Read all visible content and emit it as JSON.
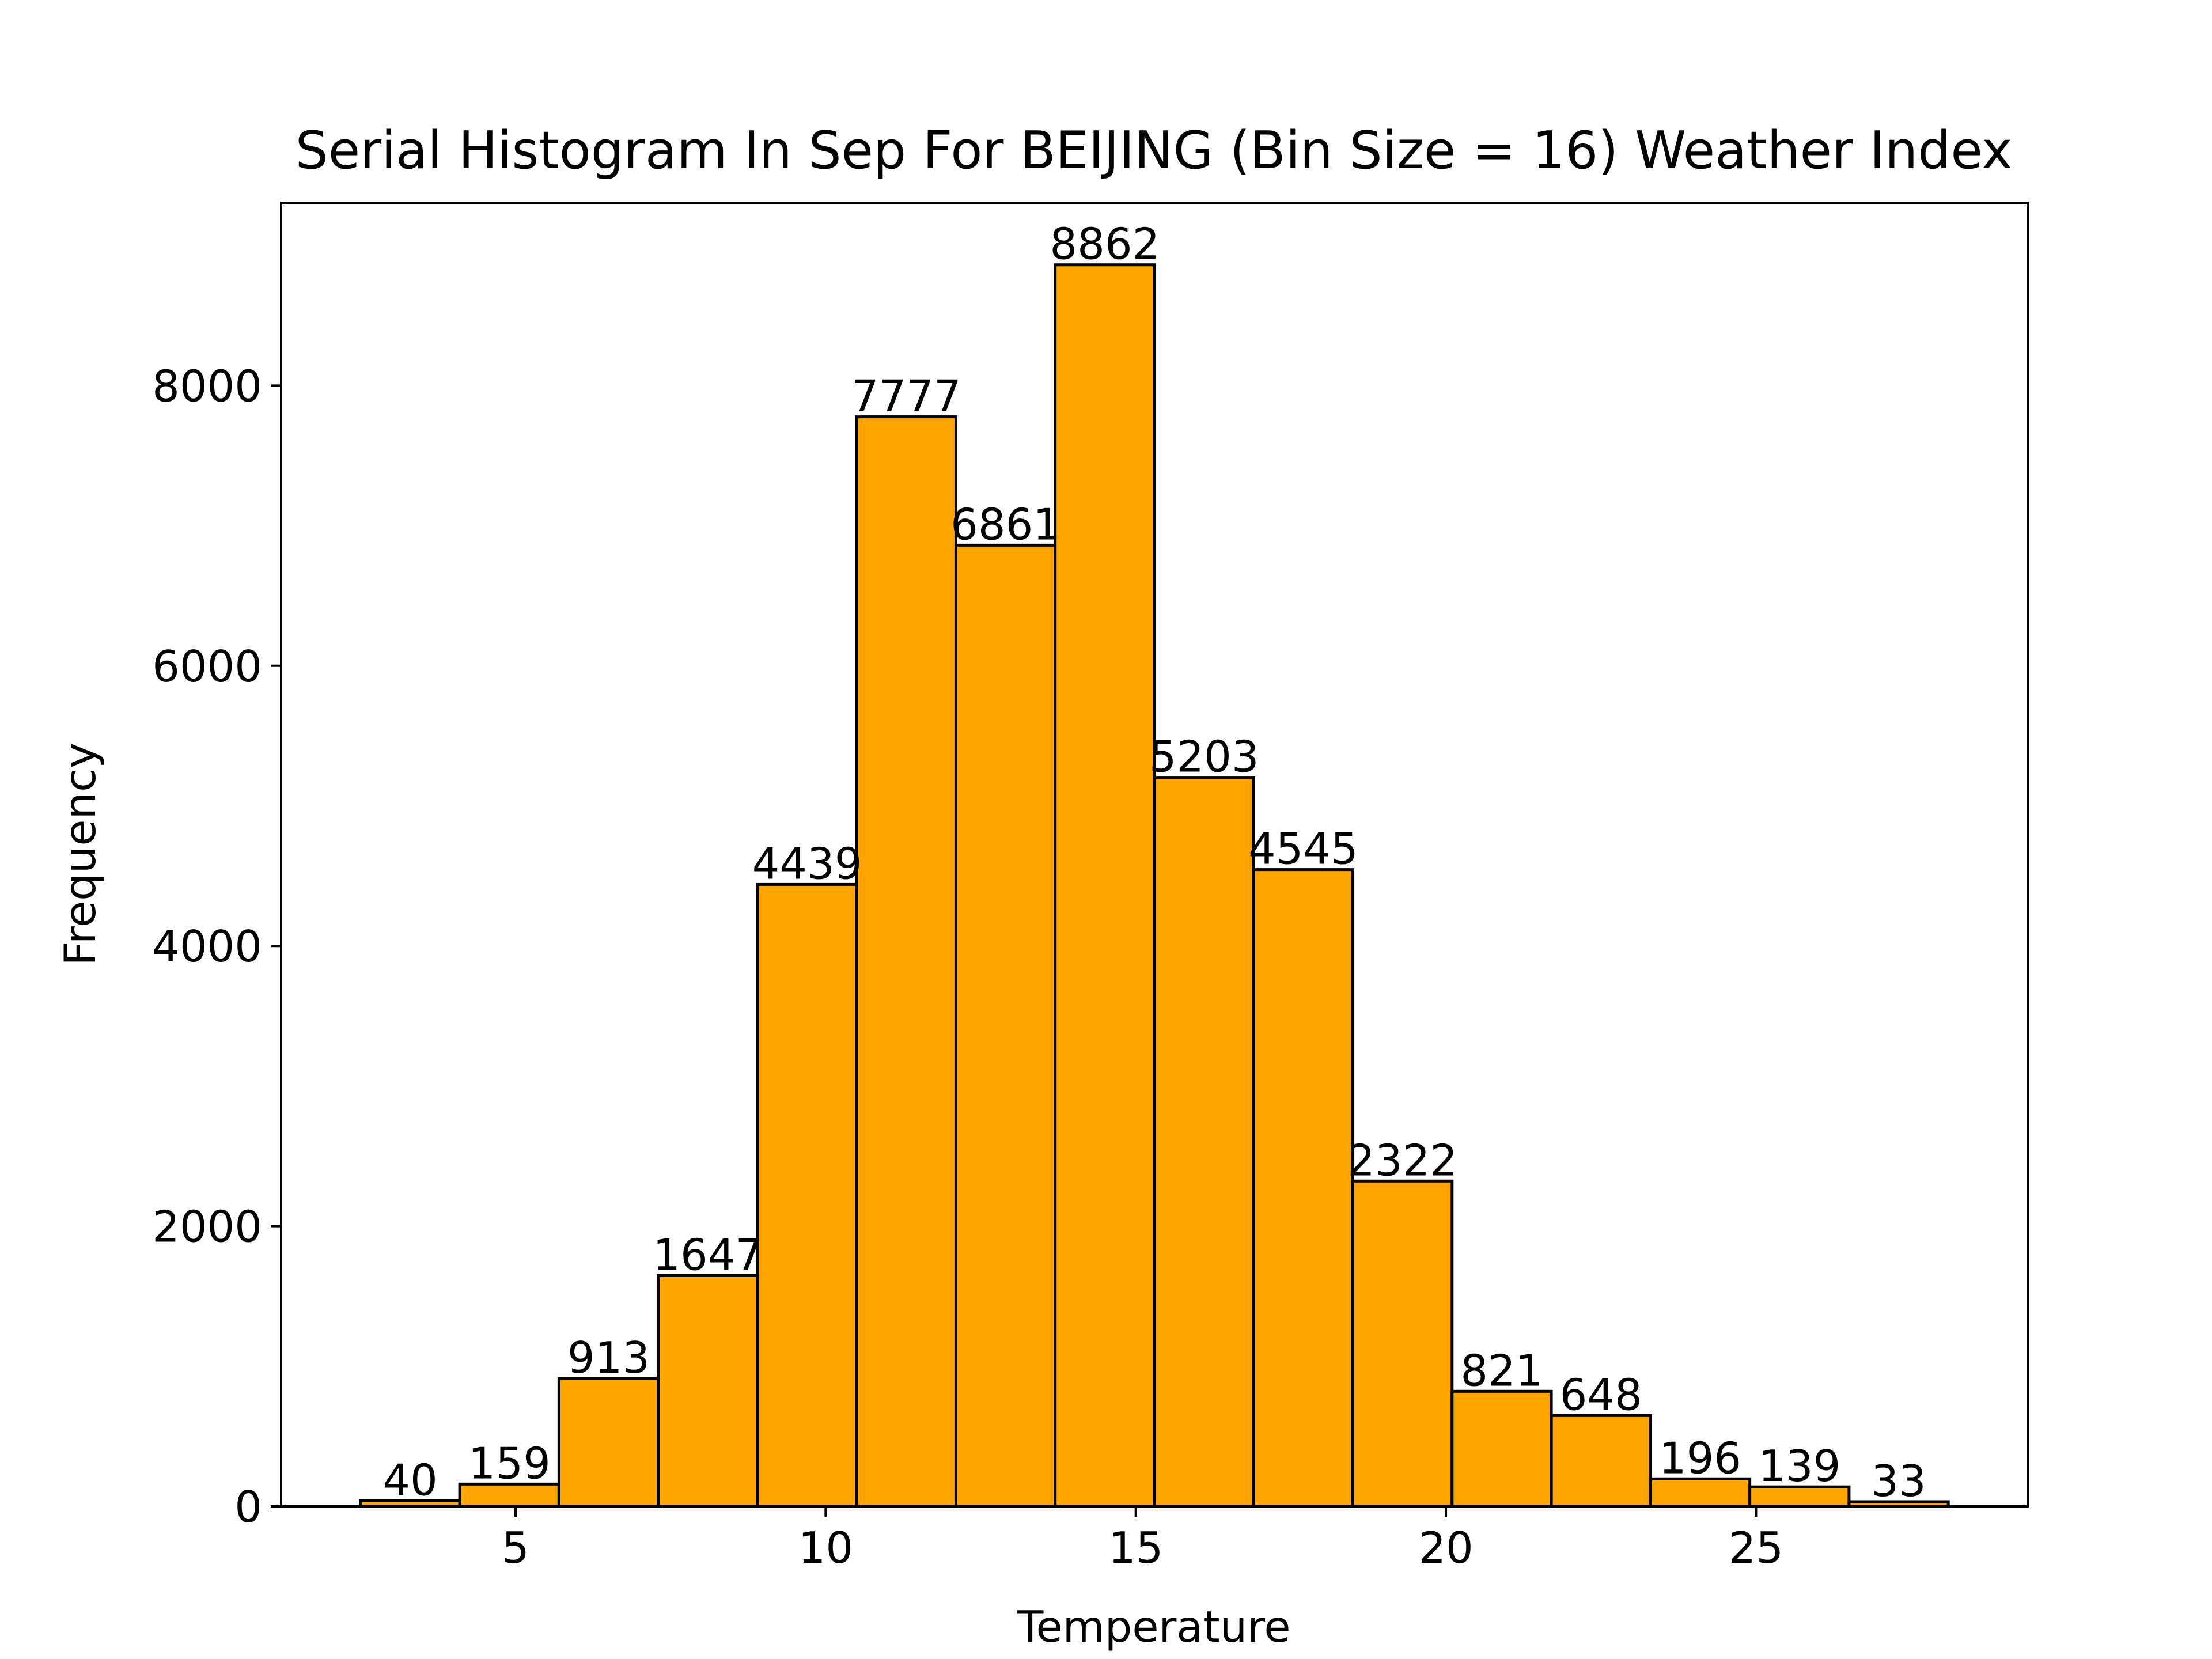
{
  "chart_data": {
    "type": "bar",
    "title": "Serial Histogram In Sep For BEIJING (Bin Size = 16) Weather Index",
    "xlabel": "Temperature",
    "ylabel": "Frequency",
    "bin_edges": [
      2.5,
      4.1,
      5.7,
      7.3,
      8.9,
      10.5,
      12.1,
      13.7,
      15.3,
      16.9,
      18.5,
      20.1,
      21.7,
      23.3,
      24.9,
      26.5,
      28.1
    ],
    "values": [
      40,
      159,
      913,
      1647,
      4439,
      7777,
      6861,
      8862,
      5203,
      4545,
      2322,
      821,
      648,
      196,
      139,
      33
    ],
    "xlim": [
      1.22,
      29.38
    ],
    "ylim": [
      0,
      9305
    ],
    "xticks": [
      5,
      10,
      15,
      20,
      25
    ],
    "yticks": [
      0,
      2000,
      4000,
      6000,
      8000
    ],
    "bar_color": "#FFA500",
    "edge_color": "#000000",
    "grid": false,
    "legend": "none"
  }
}
